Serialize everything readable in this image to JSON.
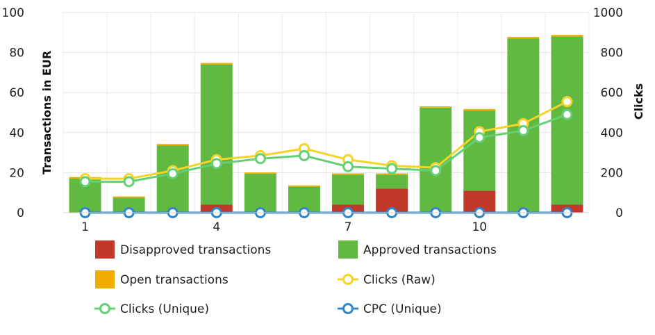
{
  "chart_data": {
    "type": "bar",
    "x": [
      1,
      2,
      3,
      4,
      5,
      6,
      7,
      8,
      9,
      10,
      11,
      12
    ],
    "x_tick_labels": [
      "1",
      "4",
      "7",
      "10"
    ],
    "y_left": {
      "label": "Transactions in EUR",
      "range": [
        0,
        100
      ],
      "ticks": [
        "0",
        "20",
        "40",
        "60",
        "80",
        "100"
      ]
    },
    "y_right": {
      "label": "Clicks",
      "range": [
        0,
        1000
      ],
      "ticks": [
        "0",
        "200",
        "400",
        "600",
        "800",
        "1000"
      ]
    },
    "bar_series": [
      {
        "name": "Disapproved transactions",
        "color": "#c0392b",
        "axis": "left",
        "values": [
          0,
          0,
          0,
          4,
          0,
          0,
          4,
          12,
          0,
          11,
          0,
          4
        ]
      },
      {
        "name": "Approved transactions",
        "color": "#62b942",
        "axis": "left",
        "values": [
          17,
          7.5,
          33.5,
          70,
          19.5,
          13,
          15,
          7,
          52.5,
          40,
          87,
          84
        ]
      },
      {
        "name": "Open transactions",
        "color": "#f0ad00",
        "axis": "left",
        "values": [
          0.8,
          0.6,
          0.8,
          0.8,
          0.6,
          0.6,
          0.6,
          0.6,
          0.6,
          0.8,
          0.8,
          0.8
        ]
      }
    ],
    "line_series": [
      {
        "name": "Clicks (Raw)",
        "color": "#f5d327",
        "axis": "right",
        "values": [
          170,
          170,
          210,
          265,
          285,
          320,
          265,
          235,
          225,
          405,
          445,
          555
        ]
      },
      {
        "name": "Clicks (Unique)",
        "color": "#64cf74",
        "axis": "right",
        "values": [
          155,
          155,
          195,
          245,
          270,
          285,
          230,
          220,
          210,
          375,
          410,
          490
        ]
      },
      {
        "name": "CPC (Unique)",
        "color": "#2f86c8",
        "axis": "right",
        "values": [
          0,
          0,
          0,
          0,
          0,
          0,
          0,
          0,
          0,
          0,
          0,
          0
        ]
      }
    ],
    "legend": [
      {
        "name": "Disapproved transactions",
        "kind": "box",
        "color": "#c0392b"
      },
      {
        "name": "Approved transactions",
        "kind": "box",
        "color": "#62b942"
      },
      {
        "name": "Open transactions",
        "kind": "box",
        "color": "#f0ad00"
      },
      {
        "name": "Clicks (Raw)",
        "kind": "line",
        "color": "#f5d327"
      },
      {
        "name": "Clicks (Unique)",
        "kind": "line",
        "color": "#64cf74"
      },
      {
        "name": "CPC (Unique)",
        "kind": "line",
        "color": "#2f86c8"
      }
    ],
    "legend_placement": "bottom",
    "grid": true
  }
}
